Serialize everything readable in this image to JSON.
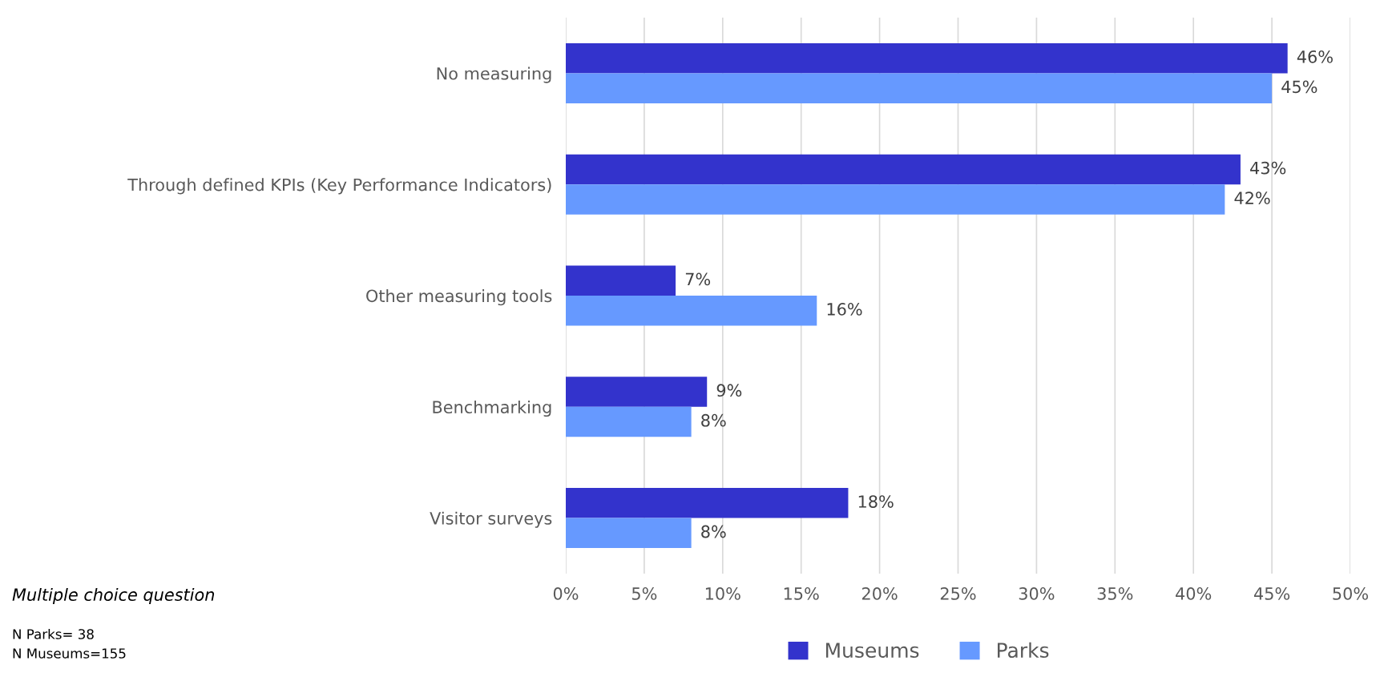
{
  "chart_data": {
    "type": "bar",
    "orientation": "horizontal",
    "categories": [
      "No measuring",
      "Through defined KPIs (Key Performance Indicators)",
      "Other measuring tools",
      "Benchmarking",
      "Visitor surveys"
    ],
    "series": [
      {
        "name": "Museums",
        "color": "#3333cc",
        "values": [
          46,
          43,
          7,
          9,
          18
        ],
        "value_labels": [
          "46%",
          "43%",
          "7%",
          "9%",
          "18%"
        ]
      },
      {
        "name": "Parks",
        "color": "#6699ff",
        "values": [
          45,
          42,
          16,
          8,
          8
        ],
        "value_labels": [
          "45%",
          "42%",
          "16%",
          "8%",
          "8%"
        ]
      }
    ],
    "xlim": [
      0,
      50
    ],
    "xticks": [
      {
        "value": 0,
        "label": "0%"
      },
      {
        "value": 5,
        "label": "5%"
      },
      {
        "value": 10,
        "label": "10%"
      },
      {
        "value": 15,
        "label": "15%"
      },
      {
        "value": 20,
        "label": "20%"
      },
      {
        "value": 25,
        "label": "25%"
      },
      {
        "value": 30,
        "label": "30%"
      },
      {
        "value": 35,
        "label": "35%"
      },
      {
        "value": 40,
        "label": "40%"
      },
      {
        "value": 45,
        "label": "45%"
      },
      {
        "value": 50,
        "label": "50%"
      }
    ],
    "grid": "x",
    "legend": "bottom",
    "annotations": [
      "Multiple choice question",
      "N Parks= 38",
      "N Museums=155"
    ]
  }
}
